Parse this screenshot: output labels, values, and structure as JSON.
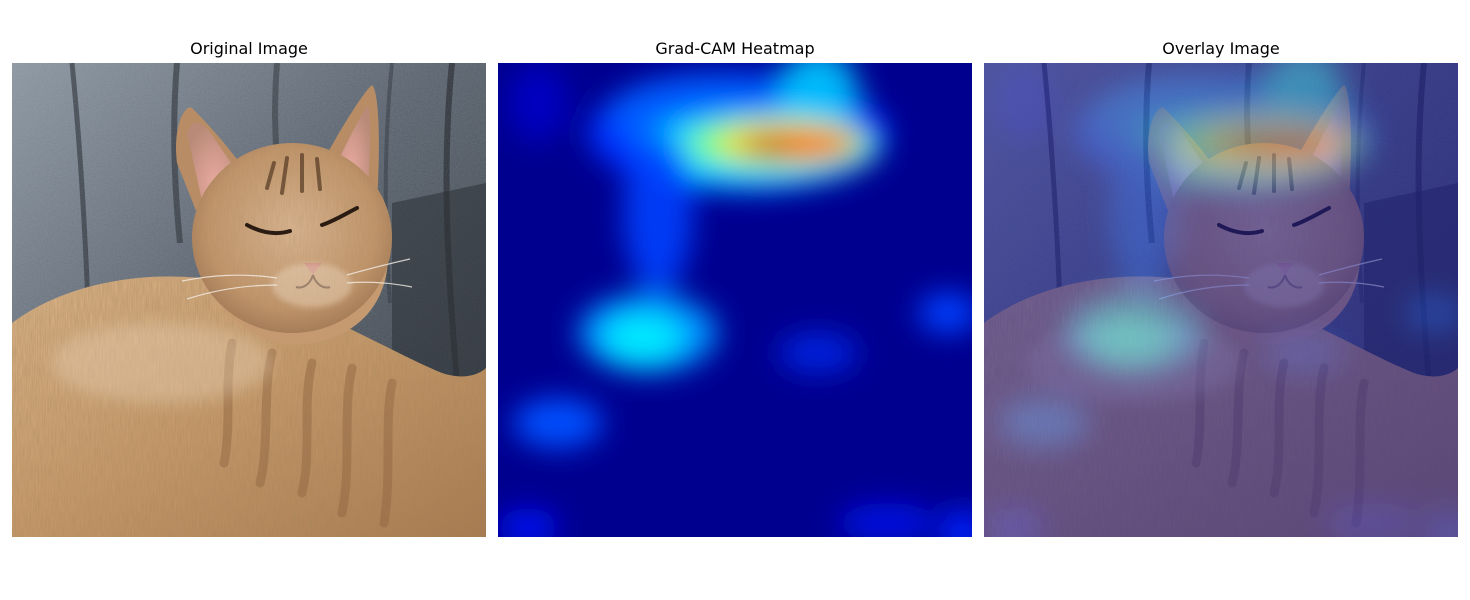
{
  "figure": {
    "panels": [
      {
        "title": "Original Image",
        "content": "tabby cat lying on a dark grey couch"
      },
      {
        "title": "Grad-CAM Heatmap",
        "content": "jet colormap activation map"
      },
      {
        "title": "Overlay Image",
        "content": "heatmap blended over photo"
      }
    ]
  },
  "colors": {
    "background": "#ffffff",
    "heatmap_low": "#00008f",
    "heatmap_mid": "#00ffff",
    "heatmap_high": "#ff0000",
    "couch": "#4b535e",
    "cat_fur": "#c69a6c"
  }
}
